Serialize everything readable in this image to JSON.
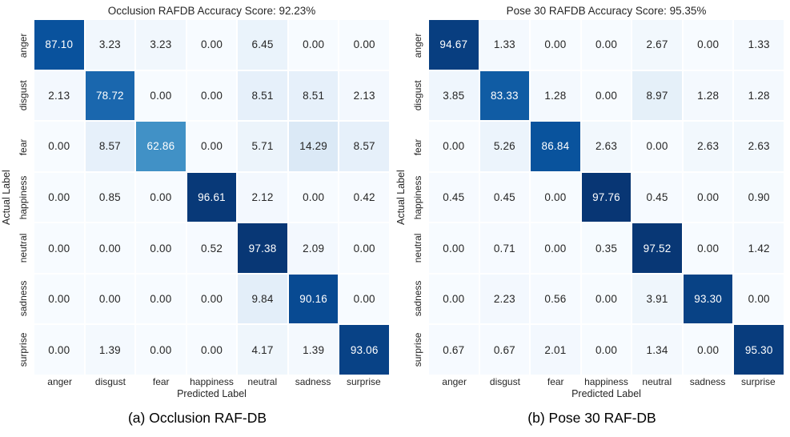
{
  "figure": {
    "background": "#ffffff",
    "colors": {
      "colormap_name": "Blues",
      "colormap_anchors": [
        "#f7fbff",
        "#deebf7",
        "#c6dbef",
        "#9ecae1",
        "#6baed6",
        "#4292c6",
        "#2171b5",
        "#08519c",
        "#08306b"
      ],
      "cell_text_light": "#ffffff",
      "cell_text_dark": "#262626",
      "tick_label_color": "#262626",
      "grid_gap_color": "#ffffff"
    }
  },
  "chart_data": [
    {
      "type": "heatmap",
      "title": "Occlusion RAFDB Accuracy Score: 92.23%",
      "accuracy_score": 92.23,
      "caption": "(a) Occlusion RAF-DB",
      "xlabel": "Predicted Label",
      "ylabel": "Actual Label",
      "x_categories": [
        "anger",
        "disgust",
        "fear",
        "happiness",
        "neutral",
        "sadness",
        "surprise"
      ],
      "y_categories": [
        "anger",
        "disgust",
        "fear",
        "happiness",
        "neutral",
        "sadness",
        "surprise"
      ],
      "colormap": "Blues",
      "vmin": 0,
      "vmax": 100,
      "legend": "none",
      "values": [
        [
          87.1,
          3.23,
          3.23,
          0.0,
          6.45,
          0.0,
          0.0
        ],
        [
          2.13,
          78.72,
          0.0,
          0.0,
          8.51,
          8.51,
          2.13
        ],
        [
          0.0,
          8.57,
          62.86,
          0.0,
          5.71,
          14.29,
          8.57
        ],
        [
          0.0,
          0.85,
          0.0,
          96.61,
          2.12,
          0.0,
          0.42
        ],
        [
          0.0,
          0.0,
          0.0,
          0.52,
          97.38,
          2.09,
          0.0
        ],
        [
          0.0,
          0.0,
          0.0,
          0.0,
          9.84,
          90.16,
          0.0
        ],
        [
          0.0,
          1.39,
          0.0,
          0.0,
          4.17,
          1.39,
          93.06
        ]
      ]
    },
    {
      "type": "heatmap",
      "title": "Pose 30 RAFDB Accuracy Score: 95.35%",
      "accuracy_score": 95.35,
      "caption": "(b) Pose 30 RAF-DB",
      "xlabel": "Predicted Label",
      "ylabel": "Actual Label",
      "x_categories": [
        "anger",
        "disgust",
        "fear",
        "happiness",
        "neutral",
        "sadness",
        "surprise"
      ],
      "y_categories": [
        "anger",
        "disgust",
        "fear",
        "happiness",
        "neutral",
        "sadness",
        "surprise"
      ],
      "colormap": "Blues",
      "vmin": 0,
      "vmax": 100,
      "legend": "none",
      "values": [
        [
          94.67,
          1.33,
          0.0,
          0.0,
          2.67,
          0.0,
          1.33
        ],
        [
          3.85,
          83.33,
          1.28,
          0.0,
          8.97,
          1.28,
          1.28
        ],
        [
          0.0,
          5.26,
          86.84,
          2.63,
          0.0,
          2.63,
          2.63
        ],
        [
          0.45,
          0.45,
          0.0,
          97.76,
          0.45,
          0.0,
          0.9
        ],
        [
          0.0,
          0.71,
          0.0,
          0.35,
          97.52,
          0.0,
          1.42
        ],
        [
          0.0,
          2.23,
          0.56,
          0.0,
          3.91,
          93.3,
          0.0
        ],
        [
          0.67,
          0.67,
          2.01,
          0.0,
          1.34,
          0.0,
          95.3
        ]
      ]
    }
  ]
}
